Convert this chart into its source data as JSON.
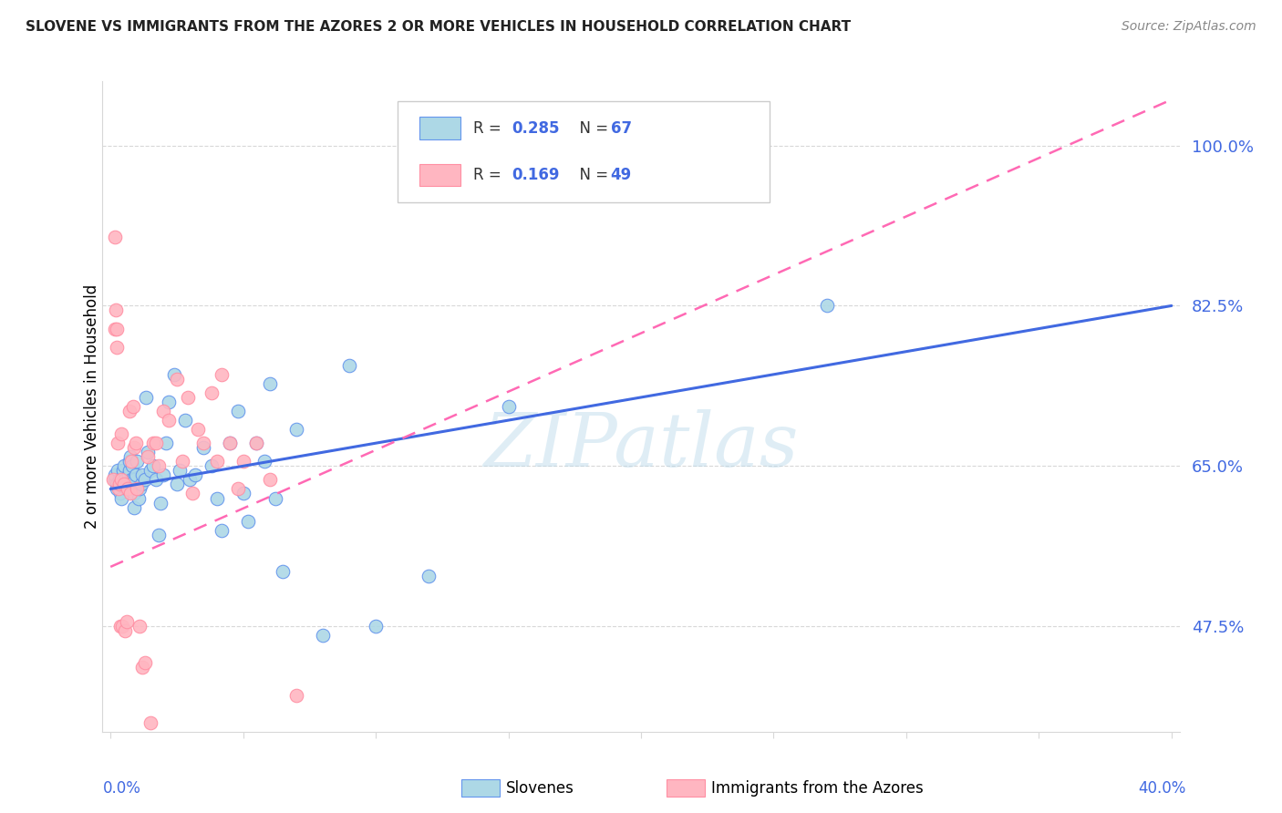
{
  "title": "SLOVENE VS IMMIGRANTS FROM THE AZORES 2 OR MORE VEHICLES IN HOUSEHOLD CORRELATION CHART",
  "source": "Source: ZipAtlas.com",
  "ylabel": "2 or more Vehicles in Household",
  "ytick_vals": [
    47.5,
    65.0,
    82.5,
    100.0
  ],
  "blue_R": "0.285",
  "blue_N": "67",
  "pink_R": "0.169",
  "pink_N": "49",
  "blue_fill": "#add8e6",
  "pink_fill": "#ffb6c1",
  "blue_edge": "#6495ed",
  "pink_edge": "#ff8fa3",
  "blue_line": "#4169e1",
  "pink_line": "#ff69b4",
  "watermark_color": "#b0d4e8",
  "grid_color": "#d8d8d8",
  "xlim": [
    0,
    40
  ],
  "ylim": [
    36,
    107
  ],
  "blue_line_y0": 62.5,
  "blue_line_y1": 82.5,
  "pink_line_y0": 54.0,
  "pink_line_y1": 105.0,
  "blue_x": [
    0.15,
    0.18,
    0.22,
    0.25,
    0.28,
    0.32,
    0.38,
    0.4,
    0.42,
    0.48,
    0.5,
    0.55,
    0.6,
    0.65,
    0.68,
    0.7,
    0.72,
    0.75,
    0.78,
    0.82,
    0.85,
    0.88,
    0.9,
    0.92,
    0.95,
    1.0,
    1.05,
    1.1,
    1.15,
    1.2,
    1.3,
    1.35,
    1.4,
    1.5,
    1.6,
    1.7,
    1.8,
    1.9,
    2.0,
    2.1,
    2.2,
    2.4,
    2.5,
    2.6,
    2.8,
    3.0,
    3.2,
    3.5,
    3.8,
    4.0,
    4.2,
    4.5,
    4.8,
    5.0,
    5.2,
    5.5,
    5.8,
    6.0,
    6.2,
    6.5,
    7.0,
    8.0,
    9.0,
    10.0,
    12.0,
    15.0,
    27.0
  ],
  "blue_y": [
    63.5,
    64.0,
    63.0,
    62.5,
    64.5,
    63.5,
    62.0,
    61.5,
    63.0,
    64.5,
    65.0,
    63.5,
    62.5,
    63.0,
    64.0,
    64.5,
    65.5,
    66.0,
    63.5,
    65.0,
    63.5,
    62.0,
    60.5,
    63.5,
    64.0,
    65.5,
    61.5,
    62.5,
    63.0,
    64.0,
    63.5,
    72.5,
    66.5,
    64.5,
    65.0,
    63.5,
    57.5,
    61.0,
    64.0,
    67.5,
    72.0,
    75.0,
    63.0,
    64.5,
    70.0,
    63.5,
    64.0,
    67.0,
    65.0,
    61.5,
    58.0,
    67.5,
    71.0,
    62.0,
    59.0,
    67.5,
    65.5,
    74.0,
    61.5,
    53.5,
    69.0,
    46.5,
    76.0,
    47.5,
    53.0,
    71.5,
    82.5
  ],
  "pink_x": [
    0.1,
    0.15,
    0.18,
    0.2,
    0.22,
    0.25,
    0.28,
    0.3,
    0.35,
    0.38,
    0.4,
    0.42,
    0.45,
    0.5,
    0.55,
    0.6,
    0.65,
    0.7,
    0.75,
    0.8,
    0.85,
    0.9,
    0.95,
    1.0,
    1.1,
    1.2,
    1.3,
    1.4,
    1.5,
    1.6,
    1.7,
    1.8,
    2.0,
    2.2,
    2.5,
    2.7,
    2.9,
    3.1,
    3.3,
    3.5,
    3.8,
    4.0,
    4.2,
    4.5,
    4.8,
    5.0,
    5.5,
    6.0,
    7.0
  ],
  "pink_y": [
    63.5,
    80.0,
    90.0,
    82.0,
    78.0,
    80.0,
    67.5,
    62.5,
    63.0,
    47.5,
    63.5,
    68.5,
    47.5,
    63.0,
    47.0,
    48.0,
    62.5,
    71.0,
    62.0,
    65.5,
    71.5,
    67.0,
    67.5,
    62.5,
    47.5,
    43.0,
    43.5,
    66.0,
    37.0,
    67.5,
    67.5,
    65.0,
    71.0,
    70.0,
    74.5,
    65.5,
    72.5,
    62.0,
    69.0,
    67.5,
    73.0,
    65.5,
    75.0,
    67.5,
    62.5,
    65.5,
    67.5,
    63.5,
    40.0
  ]
}
